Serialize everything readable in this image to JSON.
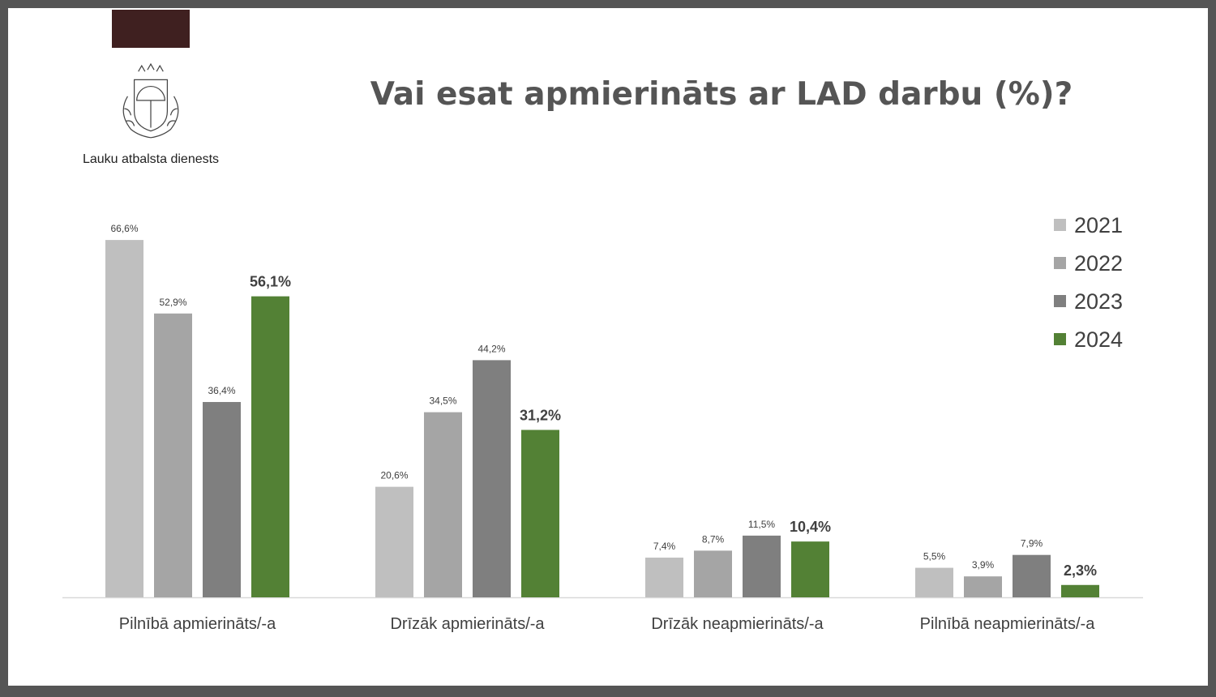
{
  "organization": "Lauku atbalsta dienests",
  "colors": {
    "2021": "#bfbfbf",
    "2022": "#a5a5a5",
    "2023": "#7f7f7f",
    "2024": "#538135",
    "brand": "#3f2020"
  },
  "chart_data": {
    "type": "bar",
    "title": "Vai esat apmierināts ar LAD darbu (%)?",
    "xlabel": "",
    "ylabel": "",
    "ylim": [
      0,
      70
    ],
    "grid": false,
    "legend_position": "right",
    "categories": [
      "Pilnībā apmierināts/-a",
      "Drīzāk apmierināts/-a",
      "Drīzāk neapmierināts/-a",
      "Pilnībā neapmierināts/-a"
    ],
    "series": [
      {
        "name": "2021",
        "values": [
          66.6,
          20.6,
          7.4,
          5.5
        ],
        "labels": [
          "66,6%",
          "20,6%",
          "7,4%",
          "5,5%"
        ]
      },
      {
        "name": "2022",
        "values": [
          52.9,
          34.5,
          8.7,
          3.9
        ],
        "labels": [
          "52,9%",
          "34,5%",
          "8,7%",
          "3,9%"
        ]
      },
      {
        "name": "2023",
        "values": [
          36.4,
          44.2,
          11.5,
          7.9
        ],
        "labels": [
          "36,4%",
          "44,2%",
          "11,5%",
          "7,9%"
        ]
      },
      {
        "name": "2024",
        "values": [
          56.1,
          31.2,
          10.4,
          2.3
        ],
        "labels": [
          "56,1%",
          "31,2%",
          "10,4%",
          "2,3%"
        ]
      }
    ]
  }
}
